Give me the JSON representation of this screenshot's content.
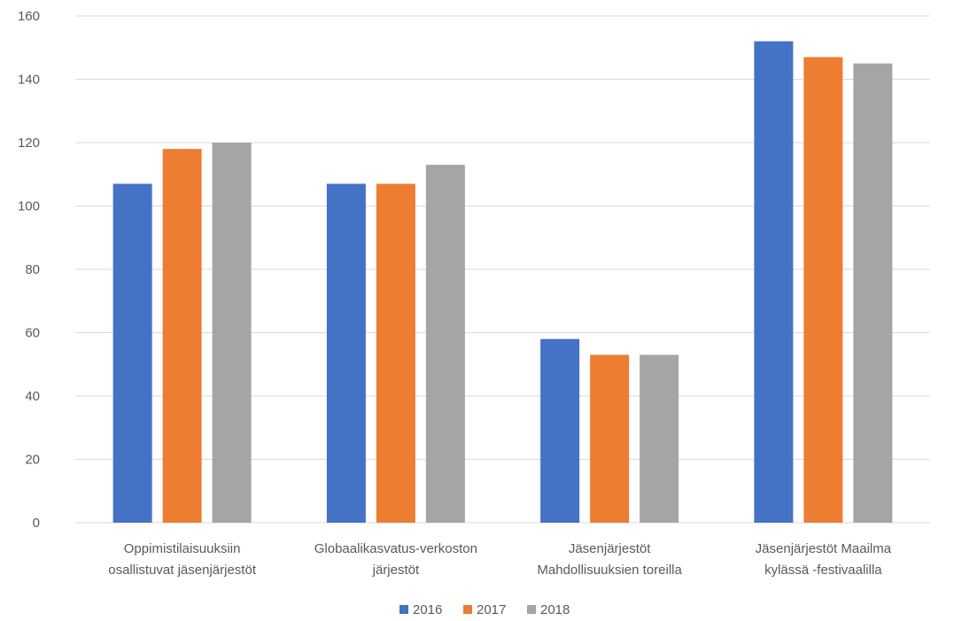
{
  "chart_data": {
    "type": "bar",
    "categories": [
      [
        "Oppimistilaisuuksiin",
        "osallistuvat jäsenjärjestöt"
      ],
      [
        "Globaalikasvatus-verkoston",
        "järjestöt"
      ],
      [
        "Jäsenjärjestöt",
        "Mahdollisuuksien toreilla"
      ],
      [
        "Jäsenjärjestöt Maailma",
        "kylässä -festivaalilla"
      ]
    ],
    "series": [
      {
        "name": "2016",
        "color": "#4472c4",
        "values": [
          107,
          107,
          58,
          152
        ]
      },
      {
        "name": "2017",
        "color": "#ed7d31",
        "values": [
          118,
          107,
          53,
          147
        ]
      },
      {
        "name": "2018",
        "color": "#a5a5a5",
        "values": [
          120,
          113,
          53,
          145
        ]
      }
    ],
    "ylim": [
      0,
      160
    ],
    "yticks": [
      "0",
      "20",
      "40",
      "60",
      "80",
      "100",
      "120",
      "140",
      "160"
    ],
    "grid": true,
    "legend_position": "bottom"
  }
}
